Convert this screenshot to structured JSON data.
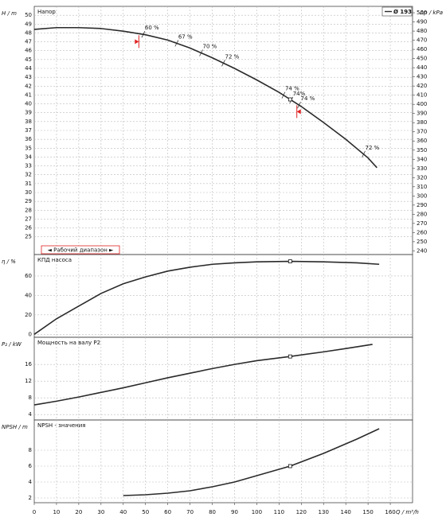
{
  "chart_data": [
    {
      "type": "line",
      "title": "Напор",
      "ylabel": "H / m",
      "y2label": "Δp / kPa",
      "x": [
        0,
        10,
        20,
        30,
        40,
        50,
        60,
        70,
        80,
        90,
        100,
        110,
        115,
        120,
        130,
        140,
        150,
        154
      ],
      "series": [
        {
          "name": "Ø 193",
          "color": "#2a2a2a",
          "values": [
            48.4,
            48.6,
            48.6,
            48.5,
            48.2,
            47.8,
            47.2,
            46.3,
            45.2,
            44.0,
            42.7,
            41.3,
            40.5,
            39.7,
            37.9,
            36.0,
            33.9,
            32.8
          ]
        }
      ],
      "xlim": [
        0,
        170
      ],
      "ylim": [
        23,
        51
      ],
      "yticks": [
        25,
        26,
        27,
        28,
        29,
        30,
        31,
        32,
        33,
        34,
        35,
        36,
        37,
        38,
        39,
        40,
        41,
        42,
        43,
        44,
        45,
        46,
        47,
        48,
        49,
        50
      ],
      "y2lim": [
        236,
        507
      ],
      "y2ticks": [
        240,
        250,
        260,
        270,
        280,
        290,
        300,
        310,
        320,
        330,
        340,
        350,
        360,
        370,
        380,
        390,
        400,
        410,
        420,
        430,
        440,
        450,
        460,
        470,
        480,
        490,
        500
      ],
      "annotations": [
        {
          "text": "60 %",
          "x": 49
        },
        {
          "text": "67 %",
          "x": 64
        },
        {
          "text": "70 %",
          "x": 75
        },
        {
          "text": "72 %",
          "x": 85
        },
        {
          "text": "74 %",
          "x": 112
        },
        {
          "text": "74%",
          "x": 115.5
        },
        {
          "text": "74 %",
          "x": 119
        },
        {
          "text": "72 %",
          "x": 148
        }
      ],
      "working_range": {
        "label": "◄ Рабочий диапазон ►",
        "x": [
          47,
          118
        ],
        "color": "#e02020"
      },
      "duty_point": {
        "x": 115,
        "y": 40.5
      }
    },
    {
      "type": "line",
      "title": "КПД насоса",
      "ylabel": "η / %",
      "x": [
        0,
        10,
        20,
        30,
        40,
        50,
        60,
        70,
        80,
        90,
        100,
        115,
        130,
        145,
        155
      ],
      "series": [
        {
          "color": "#2a2a2a",
          "values": [
            0,
            16,
            29,
            42,
            52,
            59,
            65,
            69,
            72,
            73.5,
            74.5,
            75,
            74.5,
            73.5,
            72
          ]
        }
      ],
      "xlim": [
        0,
        170
      ],
      "ylim": [
        -3,
        82
      ],
      "yticks": [
        0,
        20,
        40,
        60
      ],
      "duty_point": {
        "x": 115,
        "y": 75
      }
    },
    {
      "type": "line",
      "title": "Мощность на валу P2",
      "ylabel": "P₂ / kW",
      "x": [
        0,
        10,
        20,
        30,
        40,
        50,
        60,
        70,
        80,
        90,
        100,
        115,
        130,
        140,
        152
      ],
      "series": [
        {
          "color": "#2a2a2a",
          "values": [
            6.3,
            7.2,
            8.2,
            9.3,
            10.4,
            11.6,
            12.8,
            13.9,
            15.0,
            16.0,
            16.9,
            17.9,
            19.0,
            19.8,
            20.8
          ]
        }
      ],
      "xlim": [
        0,
        170
      ],
      "ylim": [
        2.7,
        22.5
      ],
      "yticks": [
        4,
        8,
        12,
        16
      ],
      "duty_point": {
        "x": 115,
        "y": 17.9
      }
    },
    {
      "type": "line",
      "title": "NPSH - значения",
      "ylabel": "NPSH / m",
      "xlabel": "Q / m³/h",
      "x": [
        40,
        50,
        60,
        70,
        80,
        90,
        100,
        110,
        115,
        130,
        145,
        155
      ],
      "series": [
        {
          "color": "#2a2a2a",
          "values": [
            2.3,
            2.4,
            2.6,
            2.9,
            3.4,
            4.0,
            4.8,
            5.6,
            6.0,
            7.6,
            9.4,
            10.7
          ]
        }
      ],
      "xlim": [
        0,
        170
      ],
      "ylim": [
        1.4,
        11.8
      ],
      "yticks": [
        2,
        4,
        6,
        8
      ],
      "xticks": [
        0,
        10,
        20,
        30,
        40,
        50,
        60,
        70,
        80,
        90,
        100,
        110,
        120,
        130,
        140,
        150,
        160
      ],
      "duty_point": {
        "x": 115,
        "y": 6.0
      }
    }
  ]
}
